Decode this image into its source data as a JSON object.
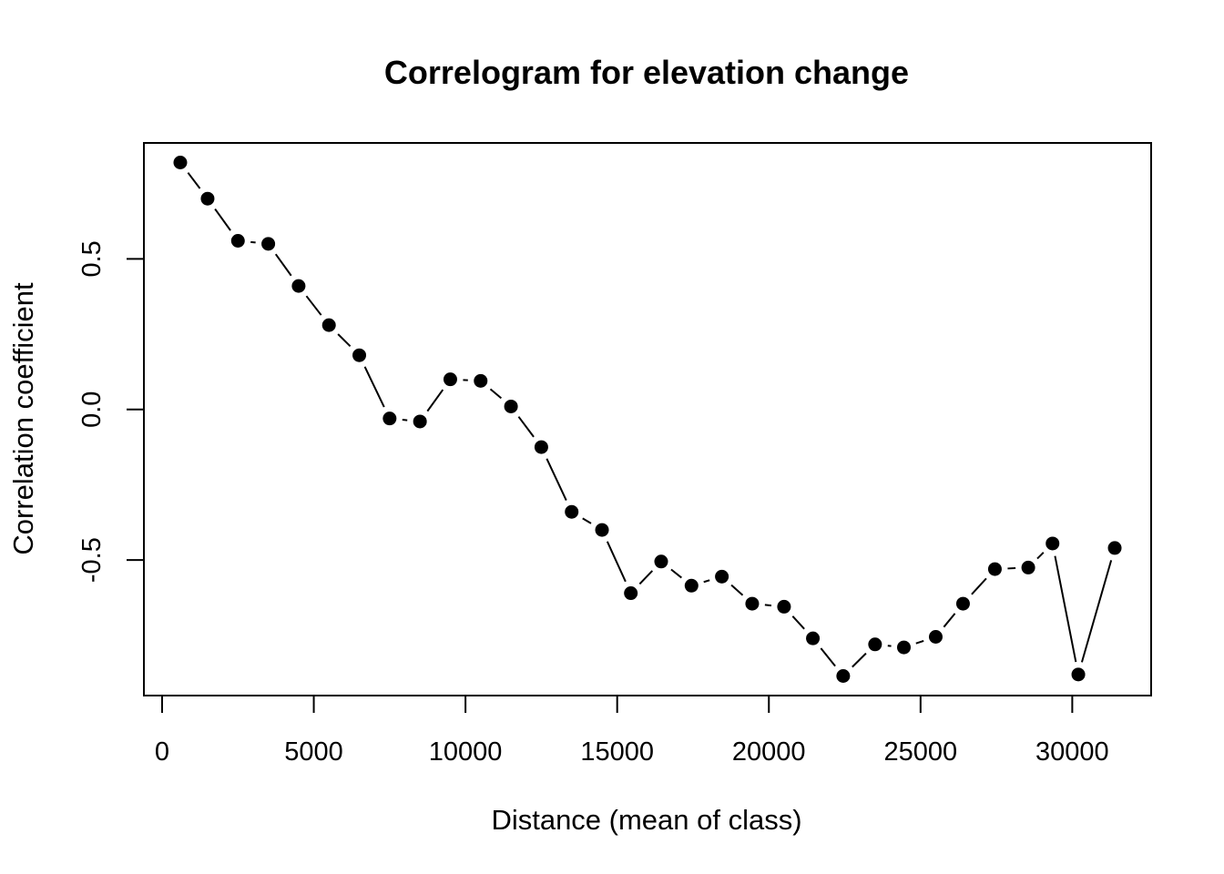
{
  "chart_data": {
    "type": "line",
    "title": "Correlogram for elevation change",
    "xlabel": "Distance (mean of class)",
    "ylabel": "Correlation coefficient",
    "xlim": [
      -600,
      32600
    ],
    "ylim": [
      -0.95,
      0.885
    ],
    "x_ticks": [
      0,
      5000,
      10000,
      15000,
      20000,
      25000,
      30000
    ],
    "x_tick_labels": [
      "0",
      "5000",
      "10000",
      "15000",
      "20000",
      "25000",
      "30000"
    ],
    "y_ticks": [
      -0.5,
      0.0,
      0.5
    ],
    "y_tick_labels": [
      "-0.5",
      "0.0",
      "0.5"
    ],
    "grid": false,
    "legend": "none",
    "series": [
      {
        "x": [
          600,
          1500,
          2500,
          3500,
          4500,
          5500,
          6500,
          7500,
          8500,
          9500,
          10500,
          11500,
          12500,
          13500,
          14500,
          15450,
          16450,
          17450,
          18450,
          19450,
          20500,
          21450,
          22450,
          23500,
          24450,
          25500,
          26400,
          27450,
          28550,
          29350,
          30200,
          31400
        ],
        "values": [
          0.82,
          0.7,
          0.56,
          0.55,
          0.41,
          0.28,
          0.18,
          -0.03,
          -0.04,
          0.1,
          0.095,
          0.01,
          -0.125,
          -0.34,
          -0.4,
          -0.61,
          -0.505,
          -0.585,
          -0.555,
          -0.645,
          -0.655,
          -0.76,
          -0.885,
          -0.78,
          -0.79,
          -0.755,
          -0.645,
          -0.53,
          -0.525,
          -0.445,
          -0.88,
          -0.46
        ]
      }
    ]
  }
}
